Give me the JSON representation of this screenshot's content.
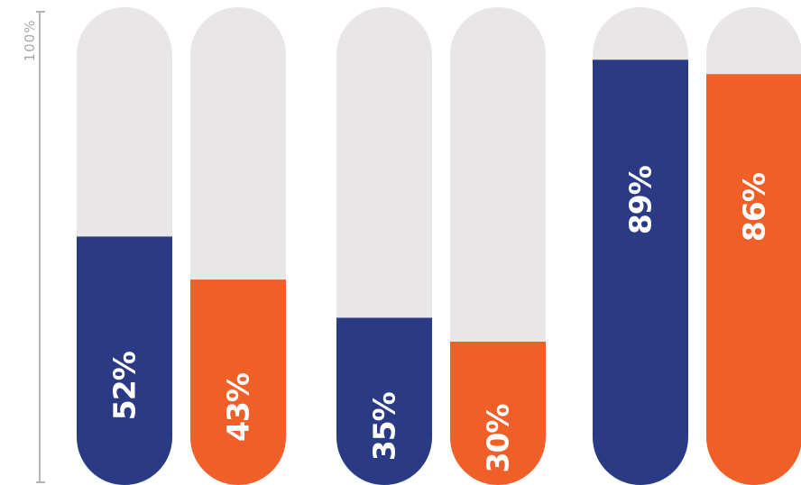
{
  "chart_data": {
    "type": "bar",
    "orientation": "vertical",
    "ylim": [
      0,
      100
    ],
    "axis_label": "100%",
    "groups": [
      {
        "bars": [
          {
            "value": 52,
            "label": "52%",
            "color": "#2b3a85"
          },
          {
            "value": 43,
            "label": "43%",
            "color": "#f05f28"
          }
        ]
      },
      {
        "bars": [
          {
            "value": 35,
            "label": "35%",
            "color": "#2b3a85"
          },
          {
            "value": 30,
            "label": "30%",
            "color": "#f05f28"
          }
        ]
      },
      {
        "bars": [
          {
            "value": 89,
            "label": "89%",
            "color": "#2b3a85"
          },
          {
            "value": 86,
            "label": "86%",
            "color": "#f05f28"
          }
        ]
      }
    ],
    "track_color": "#e8e6e7",
    "grid": false,
    "legend": "none"
  }
}
